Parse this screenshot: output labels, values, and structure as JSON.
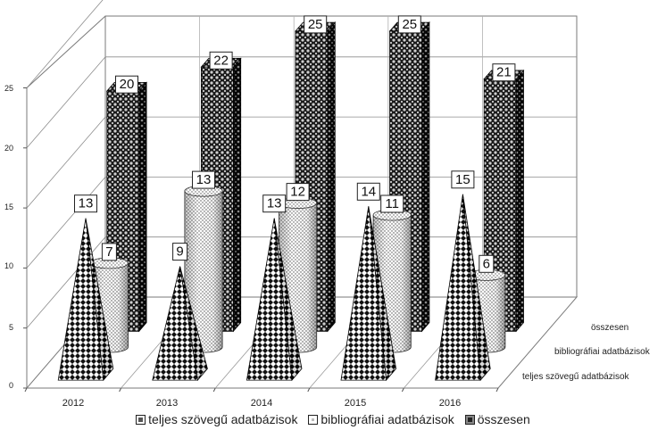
{
  "chart_data": {
    "type": "bar",
    "categories": [
      "2012",
      "2013",
      "2014",
      "2015",
      "2016"
    ],
    "series": [
      {
        "name": "teljes szövegű adatbázisok",
        "values": [
          13,
          9,
          13,
          14,
          15
        ],
        "shape": "pyramid"
      },
      {
        "name": "bibliográfiai adatbázisok",
        "values": [
          7,
          13,
          12,
          11,
          6
        ],
        "shape": "cylinder"
      },
      {
        "name": "összesen",
        "values": [
          20,
          22,
          25,
          25,
          21
        ],
        "shape": "box"
      }
    ],
    "yticks": [
      "0",
      "5",
      "10",
      "15",
      "20",
      "25"
    ],
    "ylim": [
      0,
      25
    ],
    "title": "",
    "xlabel": "",
    "ylabel": "",
    "grid": true,
    "legend_position": "bottom",
    "projection": "3d"
  }
}
